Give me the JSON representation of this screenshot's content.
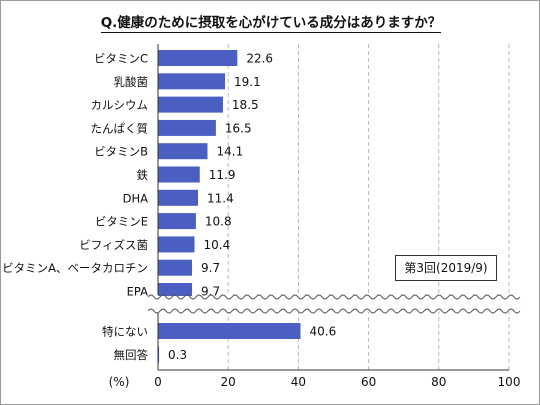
{
  "chart_data": {
    "type": "bar",
    "orientation": "horizontal",
    "title": "Q.健康のために摂取を心がけている成分はありますか？",
    "categories": [
      "ビタミンC",
      "乳酸菌",
      "カルシウム",
      "たんぱく質",
      "ビタミンB",
      "鉄",
      "DHA",
      "ビタミンE",
      "ビフィズス菌",
      "ビタミンA、ベータカロチン",
      "EPA",
      "特にない",
      "無回答"
    ],
    "values": [
      22.6,
      19.1,
      18.5,
      16.5,
      14.1,
      11.9,
      11.4,
      10.8,
      10.4,
      9.7,
      9.7,
      40.6,
      0.3
    ],
    "value_labels": [
      "22.6",
      "19.1",
      "18.5",
      "16.5",
      "14.1",
      "11.9",
      "11.4",
      "10.8",
      "10.4",
      "9.7",
      "9.7",
      "40.6",
      "0.3"
    ],
    "xlim": [
      0,
      100
    ],
    "xticks": [
      "0",
      "20",
      "40",
      "60",
      "80",
      "100"
    ],
    "xlabel": "(%)",
    "axis_break_after_index": 10,
    "gridlines": "vertical dashed",
    "bar_color": "#4a5fc1",
    "annotation": "第3回(2019/9)"
  }
}
